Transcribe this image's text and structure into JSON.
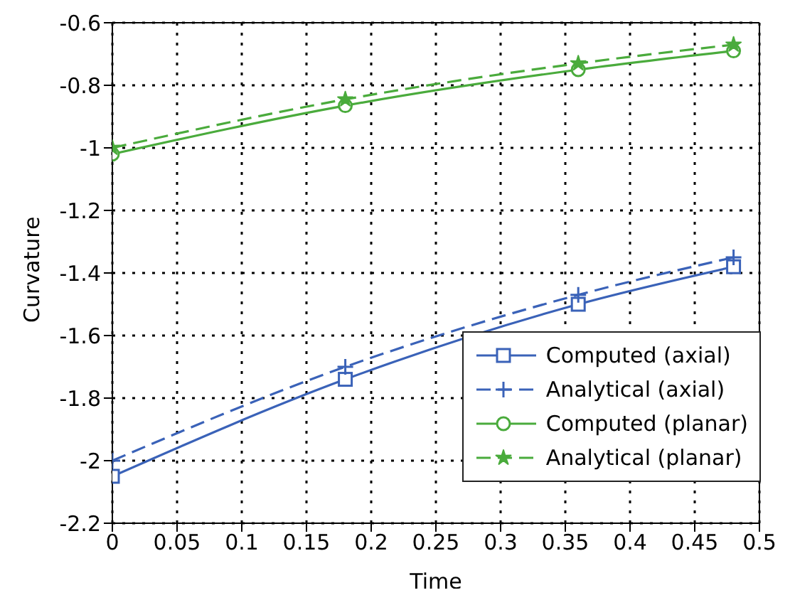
{
  "chart_data": {
    "type": "line",
    "xlabel": "Time",
    "ylabel": "Curvature",
    "xlim": [
      0,
      0.5
    ],
    "xticks": [
      0,
      0.05,
      0.1,
      0.15,
      0.2,
      0.25,
      0.3,
      0.35,
      0.4,
      0.45,
      0.5
    ],
    "ylim": [
      -2.2,
      -0.6
    ],
    "yticks": [
      -2.2,
      -2,
      -1.8,
      -1.6,
      -1.4,
      -1.2,
      -1,
      -0.8,
      -0.6
    ],
    "grid": true,
    "legend": "bottom right",
    "series": [
      {
        "name": "Computed (axial)",
        "color": "#3a62b8",
        "marker": "square",
        "line_style": "solid",
        "x": [
          0,
          0.18,
          0.36,
          0.48
        ],
        "values": [
          -2.05,
          -1.74,
          -1.5,
          -1.38
        ]
      },
      {
        "name": "Analytical (axial)",
        "color": "#3a62b8",
        "marker": "cross",
        "line_style": "dashed",
        "x": [
          0,
          0.18,
          0.36,
          0.48
        ],
        "values": [
          -2.0,
          -1.7,
          -1.47,
          -1.35
        ]
      },
      {
        "name": "Computed (planar)",
        "color": "#4aab3c",
        "marker": "circle",
        "line_style": "solid",
        "x": [
          0,
          0.18,
          0.36,
          0.48
        ],
        "values": [
          -1.02,
          -0.865,
          -0.75,
          -0.69
        ]
      },
      {
        "name": "Analytical (planar)",
        "color": "#4aab3c",
        "marker": "star",
        "line_style": "dashed",
        "x": [
          0,
          0.18,
          0.36,
          0.48
        ],
        "values": [
          -1.0,
          -0.845,
          -0.73,
          -0.67
        ]
      }
    ]
  }
}
